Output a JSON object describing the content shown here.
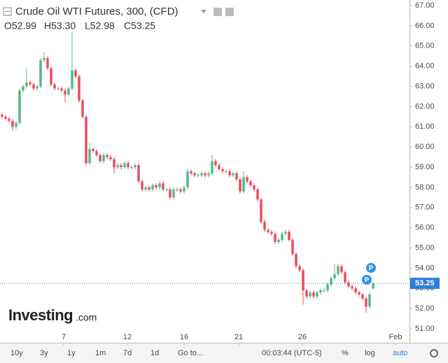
{
  "chart_data": {
    "type": "candlestick",
    "title": "Crude Oil WTI Futures, 300, (CFD)",
    "ohlc_legend": [
      "O52.99",
      "H53.30",
      "L52.98",
      "C53.25"
    ],
    "watermark": [
      "Investing",
      ".com"
    ],
    "markers": [
      "P",
      "P"
    ],
    "up_color": "#53b987",
    "down_color": "#eb4d5c",
    "last_price": 53.25,
    "last_price_color": "#2f7ed8",
    "open": [
      61.6,
      61.5,
      61.4,
      61.3,
      61.0,
      61.2,
      62.8,
      63.0,
      63.2,
      63.1,
      62.9,
      63.0,
      64.3,
      64.4,
      63.9,
      63.1,
      62.9,
      62.9,
      62.8,
      62.6,
      62.9,
      63.8,
      63.5,
      62.3,
      61.5,
      59.2,
      59.9,
      59.8,
      59.6,
      59.3,
      59.6,
      59.5,
      59.4,
      59.0,
      59.1,
      59.0,
      59.2,
      59.0,
      59.0,
      59.1,
      58.3,
      57.9,
      58.0,
      57.9,
      58.1,
      58.0,
      58.2,
      57.9,
      57.9,
      57.5,
      57.9,
      57.9,
      57.8,
      58.0,
      58.8,
      58.7,
      58.6,
      58.6,
      58.7,
      58.6,
      58.7,
      59.3,
      59.1,
      58.9,
      58.8,
      58.8,
      58.6,
      58.7,
      58.4,
      57.8,
      58.5,
      58.3,
      58.1,
      57.9,
      57.4,
      56.3,
      55.9,
      55.8,
      55.7,
      55.3,
      55.4,
      55.7,
      55.8,
      55.4,
      54.7,
      54.1,
      53.9,
      52.9,
      52.6,
      52.8,
      52.6,
      52.8,
      52.9,
      52.9,
      53.2,
      53.5,
      53.7,
      54.1,
      53.8,
      53.3,
      53.1,
      53.0,
      52.8,
      52.7,
      52.5,
      52.1,
      52.99
    ],
    "high": [
      61.7,
      61.6,
      61.5,
      61.4,
      61.3,
      62.9,
      63.1,
      63.9,
      63.3,
      63.2,
      63.1,
      64.4,
      64.7,
      64.5,
      64.0,
      63.2,
      63.0,
      63.0,
      62.9,
      63.0,
      65.7,
      63.9,
      63.6,
      62.4,
      61.6,
      60.2,
      60.0,
      59.9,
      59.7,
      59.7,
      59.7,
      59.6,
      59.5,
      59.2,
      59.2,
      59.3,
      59.3,
      59.1,
      59.2,
      59.2,
      58.4,
      58.1,
      58.1,
      58.2,
      58.2,
      58.3,
      58.3,
      58.0,
      58.0,
      58.0,
      58.0,
      58.0,
      58.1,
      58.9,
      58.9,
      58.8,
      58.7,
      58.8,
      58.8,
      58.8,
      59.6,
      59.4,
      59.2,
      59.0,
      58.9,
      58.9,
      58.8,
      58.8,
      58.5,
      58.8,
      58.6,
      58.4,
      58.2,
      58.0,
      57.5,
      56.4,
      56.0,
      55.9,
      55.8,
      55.5,
      55.8,
      55.9,
      55.9,
      55.5,
      54.8,
      54.2,
      54.0,
      53.0,
      52.9,
      52.9,
      52.9,
      53.0,
      53.0,
      53.3,
      53.6,
      54.2,
      54.2,
      54.2,
      53.9,
      53.4,
      53.2,
      53.1,
      52.9,
      52.8,
      52.6,
      52.8,
      53.3
    ],
    "low": [
      61.4,
      61.3,
      61.2,
      60.8,
      60.9,
      61.1,
      62.7,
      62.9,
      63.0,
      62.8,
      62.8,
      62.9,
      64.2,
      63.8,
      63.0,
      62.8,
      62.8,
      62.7,
      62.2,
      62.5,
      62.8,
      63.4,
      62.2,
      61.4,
      59.1,
      59.1,
      59.7,
      59.5,
      59.2,
      59.2,
      59.4,
      59.3,
      58.7,
      58.9,
      58.9,
      58.9,
      58.9,
      58.9,
      58.9,
      58.2,
      57.8,
      57.8,
      57.8,
      57.8,
      57.9,
      57.9,
      57.8,
      57.8,
      57.4,
      57.4,
      57.8,
      57.7,
      57.7,
      57.9,
      58.6,
      58.5,
      58.5,
      58.5,
      58.5,
      58.5,
      58.6,
      59.0,
      58.8,
      58.7,
      58.7,
      58.5,
      58.5,
      58.3,
      57.7,
      57.7,
      58.2,
      58.0,
      57.8,
      57.3,
      56.2,
      55.8,
      55.7,
      55.6,
      55.2,
      55.2,
      55.3,
      55.6,
      55.3,
      54.6,
      54.0,
      53.8,
      52.2,
      52.5,
      52.5,
      52.5,
      52.5,
      52.7,
      52.8,
      52.8,
      53.1,
      53.4,
      53.6,
      53.7,
      53.2,
      53.0,
      52.9,
      52.7,
      52.6,
      52.4,
      51.8,
      52.0,
      52.98
    ],
    "close": [
      61.5,
      61.4,
      61.3,
      61.0,
      61.2,
      62.8,
      63.0,
      63.2,
      63.1,
      62.9,
      63.0,
      64.3,
      64.4,
      63.9,
      63.1,
      62.9,
      62.9,
      62.8,
      62.6,
      62.9,
      63.8,
      63.5,
      62.3,
      61.5,
      59.2,
      59.9,
      59.8,
      59.6,
      59.3,
      59.6,
      59.5,
      59.4,
      59.0,
      59.1,
      59.0,
      59.2,
      59.0,
      59.0,
      59.1,
      58.3,
      57.9,
      58.0,
      57.9,
      58.1,
      58.0,
      58.2,
      57.9,
      57.9,
      57.5,
      57.9,
      57.9,
      57.8,
      58.0,
      58.8,
      58.7,
      58.6,
      58.6,
      58.7,
      58.6,
      58.7,
      59.3,
      59.1,
      58.9,
      58.8,
      58.8,
      58.6,
      58.7,
      58.4,
      57.8,
      58.5,
      58.3,
      58.1,
      57.9,
      57.4,
      56.3,
      55.9,
      55.8,
      55.7,
      55.3,
      55.4,
      55.7,
      55.8,
      55.4,
      54.7,
      54.1,
      53.9,
      52.9,
      52.6,
      52.8,
      52.6,
      52.8,
      52.9,
      52.9,
      53.2,
      53.5,
      53.7,
      54.1,
      53.8,
      53.3,
      53.1,
      53.0,
      52.8,
      52.7,
      52.5,
      52.1,
      52.7,
      53.25
    ],
    "xlim": [
      -0.6,
      116.4
    ],
    "xticks": [
      {
        "value": 17.6,
        "label": "7"
      },
      {
        "value": 35.8,
        "label": "12"
      },
      {
        "value": 52,
        "label": "16"
      },
      {
        "value": 67.6,
        "label": "21"
      },
      {
        "value": 85.8,
        "label": "26"
      },
      {
        "value": 112.4,
        "label": "Feb"
      }
    ],
    "ylim": [
      50.31,
      67.28
    ],
    "yticks": [
      {
        "value": 51,
        "label": "51.00"
      },
      {
        "value": 52,
        "label": "52.00"
      },
      {
        "value": 53,
        "label": "53.00"
      },
      {
        "value": 54,
        "label": "54.00"
      },
      {
        "value": 55,
        "label": "55.00"
      },
      {
        "value": 56,
        "label": "56.00"
      },
      {
        "value": 57,
        "label": "57.00"
      },
      {
        "value": 58,
        "label": "58.00"
      },
      {
        "value": 59,
        "label": "59.00"
      },
      {
        "value": 60,
        "label": "60.00"
      },
      {
        "value": 61,
        "label": "61.00"
      },
      {
        "value": 62,
        "label": "62.00"
      },
      {
        "value": 63,
        "label": "63.00"
      },
      {
        "value": 64,
        "label": "64.00"
      },
      {
        "value": 65,
        "label": "65.00"
      },
      {
        "value": 66,
        "label": "66.00"
      },
      {
        "value": 67,
        "label": "67.00"
      }
    ],
    "grid": false
  },
  "toolbar": {
    "ranges": [
      "10y",
      "3y",
      "1y",
      "1m",
      "7d",
      "1d",
      "Go to..."
    ],
    "clock": "00:03:44 (UTC-5)",
    "options": [
      "%",
      "log",
      "auto"
    ]
  }
}
